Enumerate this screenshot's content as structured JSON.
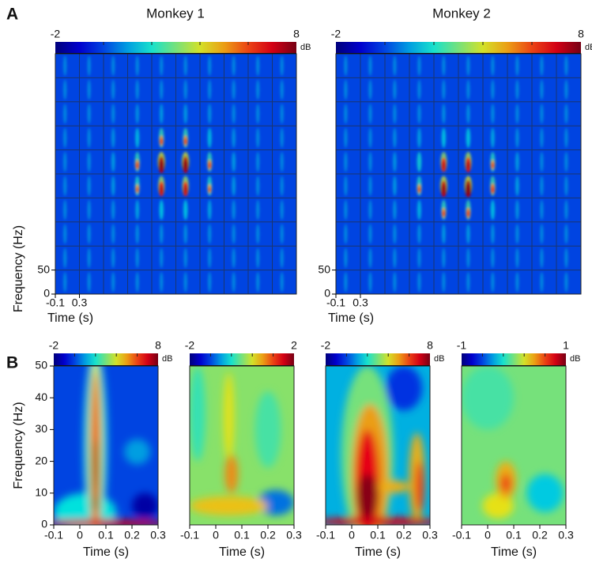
{
  "panel_a": {
    "label": "A",
    "monkeys": [
      {
        "title": "Monkey 1",
        "colorbar": {
          "min": -2,
          "max": 8,
          "unit": "dB"
        },
        "yticks": [
          0,
          50
        ],
        "xticks": [
          -0.1,
          0.3
        ],
        "ylabel": "Frequency (Hz)",
        "xlabel": "Time (s)"
      },
      {
        "title": "Monkey 2",
        "colorbar": {
          "min": -2,
          "max": 8,
          "unit": "dB"
        },
        "yticks": [
          0,
          50
        ],
        "xticks": [
          -0.1,
          0.3
        ],
        "xlabel": "Time (s)"
      }
    ]
  },
  "panel_b": {
    "label": "B",
    "plots": [
      {
        "colorbar": {
          "min": -2,
          "max": 8,
          "unit": "dB"
        },
        "xlim": [
          -0.1,
          0.3
        ],
        "ylim": [
          0,
          50
        ],
        "xticks": [
          -0.1,
          0,
          0.1,
          0.2,
          0.3
        ],
        "yticks": [
          0,
          10,
          20,
          30,
          40,
          50
        ],
        "ylabel": "Frequency (Hz)",
        "xlabel": "Time (s)"
      },
      {
        "colorbar": {
          "min": -2,
          "max": 2
        },
        "xlim": [
          -0.1,
          0.3
        ],
        "ylim": [
          0,
          50
        ],
        "xticks": [
          -0.1,
          0,
          0.1,
          0.2,
          0.3
        ],
        "xlabel": "Time (s)"
      },
      {
        "colorbar": {
          "min": -2,
          "max": 8,
          "unit": "dB"
        },
        "xlim": [
          -0.1,
          0.3
        ],
        "ylim": [
          0,
          50
        ],
        "xticks": [
          -0.1,
          0,
          0.1,
          0.2,
          0.3
        ],
        "xlabel": "Time (s)"
      },
      {
        "colorbar": {
          "min": -1,
          "max": 1,
          "unit": "dB"
        },
        "xlim": [
          -0.1,
          0.3
        ],
        "ylim": [
          0,
          50
        ],
        "xticks": [
          -0.1,
          0,
          0.1,
          0.2,
          0.3
        ],
        "xlabel": "Time (s)"
      }
    ]
  }
}
